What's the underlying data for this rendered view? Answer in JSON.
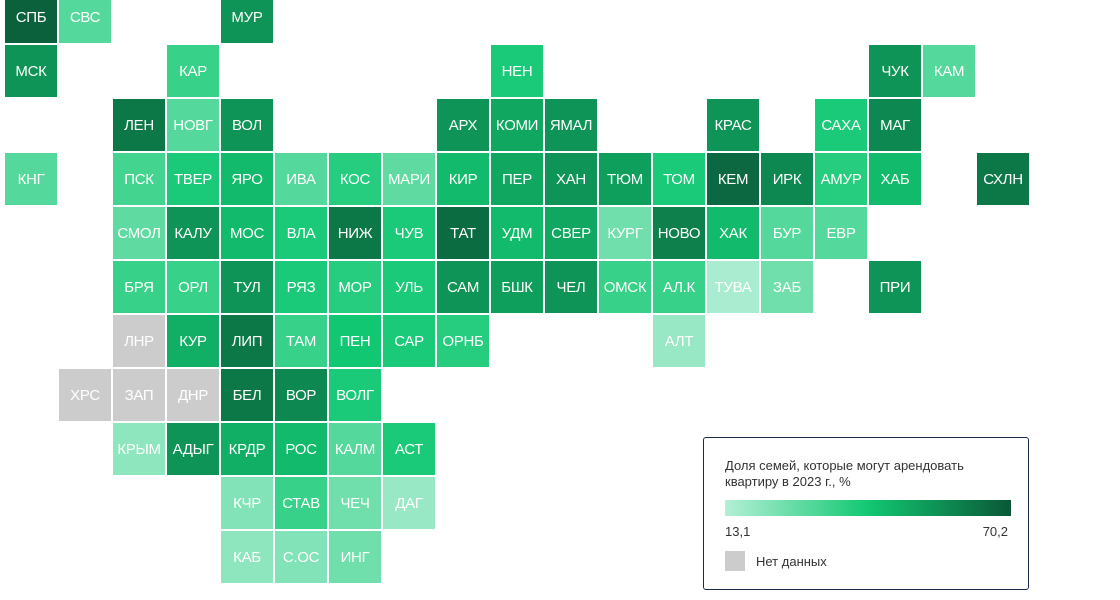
{
  "tiles": [
    {
      "label": "СПБ",
      "value": 68
    },
    {
      "label": "СВС",
      "value": 30
    },
    {
      "label": "МУР",
      "value": 55
    },
    {
      "label": "МСК",
      "value": 55
    },
    {
      "label": "КАР",
      "value": 35
    },
    {
      "label": "НЕН",
      "value": 40
    },
    {
      "label": "ЧУК",
      "value": 55
    },
    {
      "label": "КАМ",
      "value": 30
    },
    {
      "label": "ЛЕН",
      "value": 62
    },
    {
      "label": "НОВГ",
      "value": 30
    },
    {
      "label": "ВОЛ",
      "value": 55
    },
    {
      "label": "АРХ",
      "value": 55
    },
    {
      "label": "КОМИ",
      "value": 50
    },
    {
      "label": "ЯМАЛ",
      "value": 55
    },
    {
      "label": "КРАС",
      "value": 55
    },
    {
      "label": "САХА",
      "value": 40
    },
    {
      "label": "МАГ",
      "value": 58
    },
    {
      "label": "КНГ",
      "value": 30
    },
    {
      "label": "ПСК",
      "value": 33
    },
    {
      "label": "ТВЕР",
      "value": 40
    },
    {
      "label": "ЯРО",
      "value": 45
    },
    {
      "label": "ИВА",
      "value": 30
    },
    {
      "label": "КОС",
      "value": 38
    },
    {
      "label": "МАРИ",
      "value": 28
    },
    {
      "label": "КИР",
      "value": 45
    },
    {
      "label": "ПЕР",
      "value": 50
    },
    {
      "label": "ХАН",
      "value": 55
    },
    {
      "label": "ТЮМ",
      "value": 52
    },
    {
      "label": "ТОМ",
      "value": 40
    },
    {
      "label": "КЕМ",
      "value": 66
    },
    {
      "label": "ИРК",
      "value": 58
    },
    {
      "label": "АМУР",
      "value": 38
    },
    {
      "label": "ХАБ",
      "value": 45
    },
    {
      "label": "СХЛН",
      "value": 62
    },
    {
      "label": "СМОЛ",
      "value": 28
    },
    {
      "label": "КАЛУ",
      "value": 55
    },
    {
      "label": "МОС",
      "value": 45
    },
    {
      "label": "ВЛА",
      "value": 40
    },
    {
      "label": "НИЖ",
      "value": 62
    },
    {
      "label": "ЧУВ",
      "value": 40
    },
    {
      "label": "ТАТ",
      "value": 65
    },
    {
      "label": "УДМ",
      "value": 45
    },
    {
      "label": "СВЕР",
      "value": 50
    },
    {
      "label": "КУРГ",
      "value": 25
    },
    {
      "label": "НОВО",
      "value": 60
    },
    {
      "label": "ХАК",
      "value": 45
    },
    {
      "label": "БУР",
      "value": 30
    },
    {
      "label": "ЕВР",
      "value": 30
    },
    {
      "label": "БРЯ",
      "value": 35
    },
    {
      "label": "ОРЛ",
      "value": 35
    },
    {
      "label": "ТУЛ",
      "value": 55
    },
    {
      "label": "РЯЗ",
      "value": 40
    },
    {
      "label": "МОР",
      "value": 38
    },
    {
      "label": "УЛЬ",
      "value": 40
    },
    {
      "label": "САМ",
      "value": 55
    },
    {
      "label": "БШК",
      "value": 52
    },
    {
      "label": "ЧЕЛ",
      "value": 55
    },
    {
      "label": "ОМСК",
      "value": 35
    },
    {
      "label": "АЛ.К",
      "value": 35
    },
    {
      "label": "ТУВА",
      "value": 15
    },
    {
      "label": "ЗАБ",
      "value": 25
    },
    {
      "label": "ПРИ",
      "value": 55
    },
    {
      "label": "ЛНР",
      "value": null
    },
    {
      "label": "КУР",
      "value": 48
    },
    {
      "label": "ЛИП",
      "value": 62
    },
    {
      "label": "ТАМ",
      "value": 35
    },
    {
      "label": "ПЕН",
      "value": 42
    },
    {
      "label": "САР",
      "value": 40
    },
    {
      "label": "ОРНБ",
      "value": 38
    },
    {
      "label": "АЛТ",
      "value": 18
    },
    {
      "label": "ХРС",
      "value": null
    },
    {
      "label": "ЗАП",
      "value": null
    },
    {
      "label": "ДНР",
      "value": null
    },
    {
      "label": "БЕЛ",
      "value": 62
    },
    {
      "label": "ВОР",
      "value": 58
    },
    {
      "label": "ВОЛГ",
      "value": 40
    },
    {
      "label": "КРЫМ",
      "value": 20
    },
    {
      "label": "АДЫГ",
      "value": 55
    },
    {
      "label": "КРДР",
      "value": 48
    },
    {
      "label": "РОС",
      "value": 45
    },
    {
      "label": "КАЛМ",
      "value": 30
    },
    {
      "label": "АСТ",
      "value": 40
    },
    {
      "label": "КЧР",
      "value": 22
    },
    {
      "label": "СТАВ",
      "value": 35
    },
    {
      "label": "ЧЕЧ",
      "value": 25
    },
    {
      "label": "ДАГ",
      "value": 18
    },
    {
      "label": "КАБ",
      "value": 20
    },
    {
      "label": "С.ОС",
      "value": 22
    },
    {
      "label": "ИНГ",
      "value": 25
    }
  ],
  "legend": {
    "title": "Доля семей, которые могут арендовать квартиру в 2023 г., %",
    "min": {
      "value": 13.1,
      "label": "13,1"
    },
    "max": {
      "value": 70.2,
      "label": "70,2"
    },
    "colors": [
      "#b4efd6",
      "#12c872",
      "#0a5837"
    ],
    "no_data_label": "Нет данных",
    "no_data_color": "#cccccc"
  }
}
